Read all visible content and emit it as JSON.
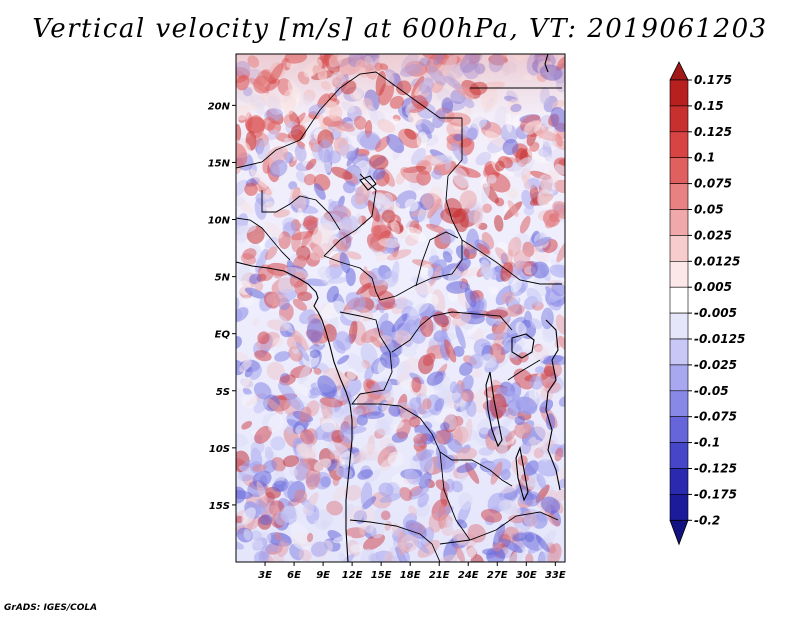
{
  "title": "Vertical velocity [m/s] at 600hPa, VT: 2019061203",
  "credit": "GrADS: IGES/COLA",
  "map": {
    "lat_labels": [
      "20N",
      "15N",
      "10N",
      "5N",
      "EQ",
      "5S",
      "10S",
      "15S"
    ],
    "lon_labels": [
      "3E",
      "6E",
      "9E",
      "12E",
      "15E",
      "18E",
      "21E",
      "24E",
      "27E",
      "30E",
      "33E"
    ],
    "lon_range": [
      0,
      34
    ],
    "lat_range": [
      -20,
      24.5
    ],
    "field_colors": {
      "rising": "#c83030",
      "sinking": "#5050d8",
      "neutral": "#ffffff"
    }
  },
  "colorbar": {
    "labels": [
      "0.175",
      "0.15",
      "0.125",
      "0.1",
      "0.075",
      "0.05",
      "0.025",
      "0.0125",
      "0.005",
      "-0.005",
      "-0.0125",
      "-0.025",
      "-0.05",
      "-0.075",
      "-0.1",
      "-0.125",
      "-0.175",
      "-0.2"
    ],
    "colors": [
      "#a01818",
      "#b82020",
      "#c83030",
      "#d84444",
      "#e06060",
      "#e88282",
      "#f0a8a8",
      "#f6cccc",
      "#fce8e8",
      "#ffffff",
      "#e6e6fa",
      "#c8c8f6",
      "#a8a8f0",
      "#8888e6",
      "#6666da",
      "#4646c8",
      "#2a2ab0",
      "#1c1c9a",
      "#121280"
    ]
  }
}
